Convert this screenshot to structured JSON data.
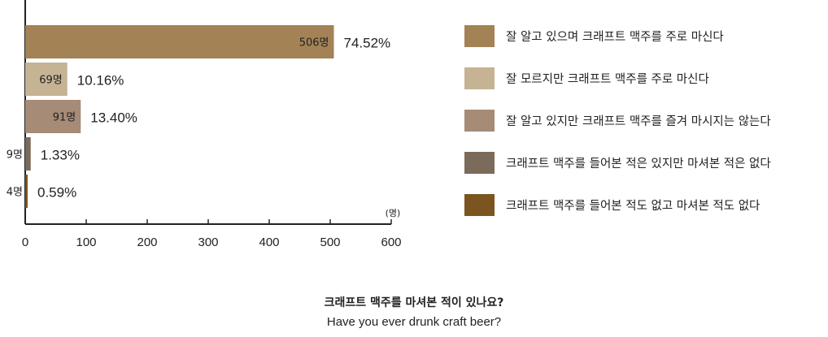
{
  "chart_data": {
    "type": "bar",
    "orientation": "horizontal",
    "categories": [
      "잘 알고 있으며 크래프트 맥주를 주로 마신다",
      "잘 모르지만 크래프트 맥주를 주로 마신다",
      "잘 알고 있지만 크래프트 맥주를 즐겨 마시지는 않는다",
      "크래프트 맥주를 들어본 적은 있지만 마셔본 적은 없다",
      "크래프트 맥주를 들어본 적도 없고 마셔본 적도 없다"
    ],
    "values": [
      506,
      69,
      91,
      9,
      4
    ],
    "value_labels": [
      "506명",
      "69명",
      "91명",
      "9명",
      "4명"
    ],
    "percent_labels": [
      "74.52%",
      "10.16%",
      "13.40%",
      "1.33%",
      "0.59%"
    ],
    "colors": [
      "#a38256",
      "#c5b393",
      "#a68b77",
      "#7c6b5a",
      "#7c5420"
    ],
    "xlim": [
      0,
      600
    ],
    "xticks": [
      0,
      100,
      200,
      300,
      400,
      500,
      600
    ],
    "xunit": "(명)",
    "legend_position": "right",
    "grid": false
  },
  "caption": {
    "korean": "크래프트 맥주를 마셔본 적이 있나요?",
    "english": "Have you ever drunk craft beer?"
  }
}
